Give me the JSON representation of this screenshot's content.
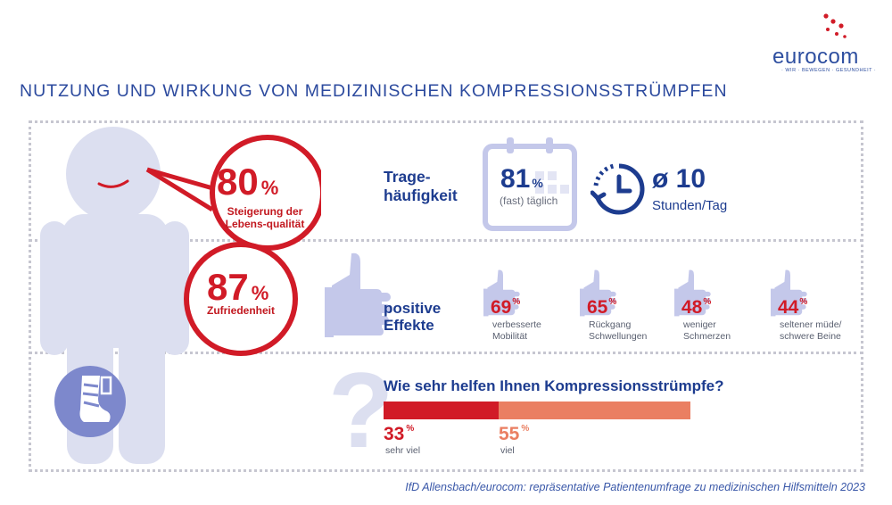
{
  "logo": {
    "name": "eurocom",
    "tagline": "· WIR · BEWEGEN · GESUNDHEIT ·"
  },
  "title": "NUTZUNG UND WIRKUNG VON MEDIZINISCHEN KOMPRESSIONSSTRÜMPFEN",
  "quality": {
    "value": "80",
    "unit": "%",
    "label": "Steigerung der Lebens-qualität"
  },
  "satisfaction": {
    "value": "87",
    "unit": "%",
    "label": "Zufriedenheit"
  },
  "wearing": {
    "label": "Trage-häufigkeit",
    "daily": {
      "value": "81",
      "unit": "%",
      "label": "(fast) täglich"
    },
    "hours": {
      "value": "ø 10",
      "label": "Stunden/Tag"
    }
  },
  "effects": {
    "label": "positive Effekte",
    "items": [
      {
        "value": "69",
        "unit": "%",
        "label": "verbesserte Mobilität"
      },
      {
        "value": "65",
        "unit": "%",
        "label": "Rückgang Schwellungen"
      },
      {
        "value": "48",
        "unit": "%",
        "label": "weniger Schmerzen"
      },
      {
        "value": "44",
        "unit": "%",
        "label": "seltener müde/ schwere Beine"
      }
    ]
  },
  "help": {
    "question": "Wie sehr helfen Ihnen Kompressionsstrümpfe?",
    "segments": [
      {
        "value": 33,
        "unit": "%",
        "label": "sehr viel",
        "color": "#d11b27"
      },
      {
        "value": 55,
        "unit": "%",
        "label": "viel",
        "color": "#ea7f62"
      }
    ]
  },
  "source": "IfD Allensbach/eurocom: repräsentative Patientenumfrage zu medizinischen Hilfsmitteln 2023",
  "colors": {
    "red": "#d11b27",
    "blue": "#1d3c8f",
    "figure": "#dcdff0",
    "accent_light": "#c4c8ea"
  }
}
